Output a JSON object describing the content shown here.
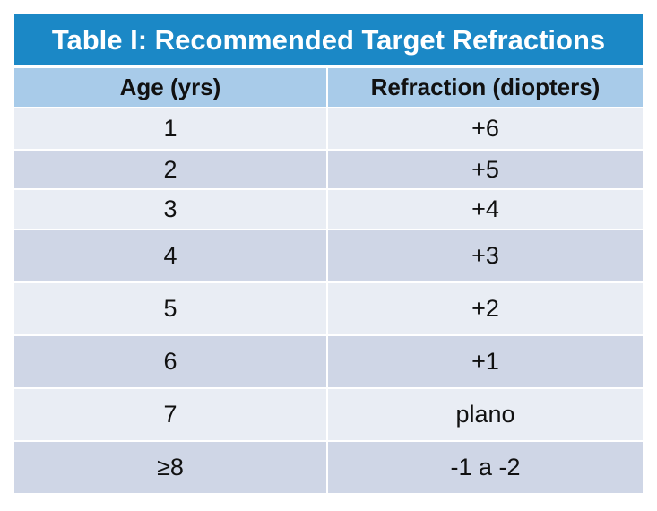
{
  "table": {
    "title": "Table I: Recommended Target Refractions",
    "headers": [
      "Age (yrs)",
      "Refraction (diopters)"
    ],
    "rows": [
      {
        "age": "1",
        "refraction": "+6"
      },
      {
        "age": "2",
        "refraction": "+5"
      },
      {
        "age": "3",
        "refraction": "+4"
      },
      {
        "age": "4",
        "refraction": "+3"
      },
      {
        "age": "5",
        "refraction": "+2"
      },
      {
        "age": "6",
        "refraction": "+1"
      },
      {
        "age": "7",
        "refraction": "plano"
      },
      {
        "age": "≥8",
        "refraction": "-1 a -2"
      }
    ]
  },
  "colors": {
    "title_bg": "#1b88c6",
    "header_bg": "#a8cbe9",
    "row_light": "#e9edf4",
    "row_dark": "#cfd6e6"
  }
}
